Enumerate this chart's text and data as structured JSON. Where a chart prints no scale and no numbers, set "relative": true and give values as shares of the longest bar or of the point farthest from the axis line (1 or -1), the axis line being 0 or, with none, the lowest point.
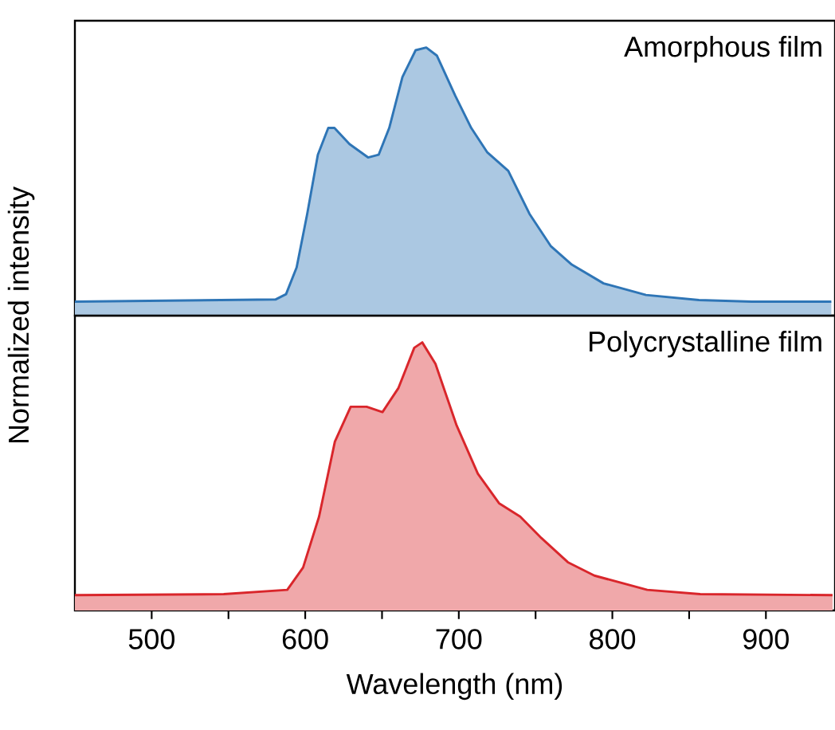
{
  "chart_data": [
    {
      "type": "area",
      "relative": true,
      "ylabel": "Normalized intensity",
      "annotations": [
        "Amorphous film"
      ],
      "xlim": [
        450,
        945
      ],
      "tick_labels": false,
      "series": [
        {
          "color": "#2e75b6",
          "x": [
            450,
            580.6,
            587.5,
            594.4,
            601.3,
            608.2,
            615,
            619,
            628.8,
            640.9,
            647.8,
            654.7,
            663.3,
            671.9,
            678.8,
            685.7,
            697.7,
            708.1,
            718.4,
            732.2,
            746,
            759.8,
            773.6,
            794.3,
            821.9,
            856.4,
            890.8,
            942.6
          ],
          "values": [
            0.052,
            0.06,
            0.08,
            0.18,
            0.38,
            0.6,
            0.7,
            0.7,
            0.64,
            0.59,
            0.6,
            0.7,
            0.89,
            0.99,
            1.0,
            0.97,
            0.82,
            0.7,
            0.61,
            0.54,
            0.38,
            0.26,
            0.19,
            0.12,
            0.077,
            0.058,
            0.052,
            0.052
          ]
        }
      ]
    },
    {
      "type": "area",
      "relative": true,
      "xlabel": "Wavelength (nm)",
      "annotations": [
        "Polycrystalline film"
      ],
      "xlim": [
        450,
        945
      ],
      "tick_labels": "x",
      "xticks": [
        500,
        {
          "value": 550,
          "label": null
        },
        600,
        {
          "value": 650,
          "label": null
        },
        700,
        {
          "value": 750,
          "label": null
        },
        800,
        {
          "value": 850,
          "label": null
        },
        900
      ],
      "series": [
        {
          "color": "#d9262b",
          "x": [
            450,
            546.9,
            588.3,
            598.6,
            609,
            619.3,
            629.6,
            640,
            650.3,
            660.7,
            671,
            676.2,
            684.8,
            698.6,
            712.4,
            726.2,
            740,
            753.8,
            771,
            788.3,
            822.7,
            857.2,
            943.4
          ],
          "values": [
            0.057,
            0.061,
            0.077,
            0.16,
            0.35,
            0.63,
            0.76,
            0.76,
            0.74,
            0.83,
            0.98,
            1.0,
            0.92,
            0.69,
            0.51,
            0.4,
            0.35,
            0.27,
            0.18,
            0.13,
            0.077,
            0.061,
            0.057
          ]
        }
      ]
    }
  ]
}
